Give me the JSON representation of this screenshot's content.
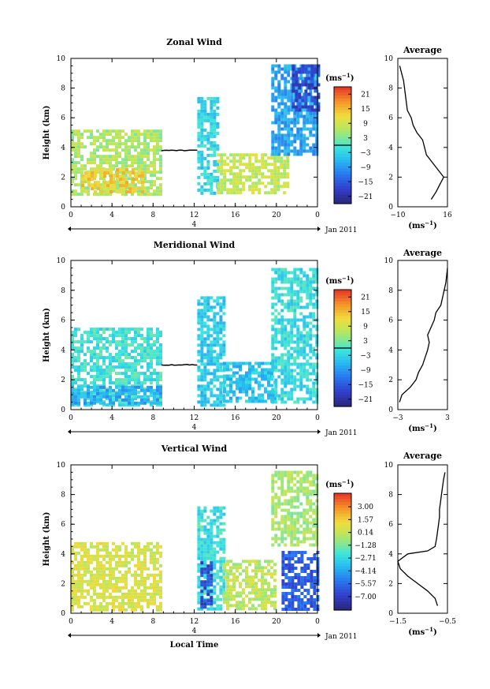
{
  "chart_data": [
    {
      "type": "heatmap",
      "title": "Zonal Wind",
      "ylabel": "Height (km)",
      "xlim": [
        0,
        24
      ],
      "ylim": [
        0,
        10
      ],
      "x_ticks": [
        "0",
        "4",
        "8",
        "12",
        "16",
        "20",
        "0"
      ],
      "y_ticks": [
        "0",
        "2",
        "4",
        "6",
        "8",
        "10"
      ],
      "date_tick": "4",
      "date_label": "Jan 2011",
      "colorbar": {
        "unit_prefix": "(ms",
        "unit_exp": "−1",
        "unit_suffix": ")",
        "min": -24,
        "max": 24,
        "tick_values": [
          21,
          15,
          9,
          3,
          -3,
          -9,
          -15,
          -21
        ],
        "tick_labels": [
          "21",
          "15",
          "9",
          "3",
          "−3",
          "−9",
          "−15",
          "−21"
        ],
        "zero_line": 0
      },
      "coverage": [
        {
          "x0": 0,
          "x1": 8.8,
          "y0": 0.8,
          "y1": 5.2,
          "value": 6
        },
        {
          "x0": 1,
          "x1": 7,
          "y0": 1.0,
          "y1": 2.6,
          "value": 13
        },
        {
          "x0": 12.3,
          "x1": 14.2,
          "y0": 0.9,
          "y1": 7.4,
          "value": -3
        },
        {
          "x0": 14.2,
          "x1": 21,
          "y0": 0.9,
          "y1": 3.6,
          "value": 8
        },
        {
          "x0": 19.5,
          "x1": 24,
          "y0": 3.5,
          "y1": 9.6,
          "value": -8
        },
        {
          "x0": 21.5,
          "x1": 24,
          "y0": 6.5,
          "y1": 9.6,
          "value": -17
        }
      ],
      "average_profile": {
        "title": "Average",
        "xlabel_prefix": "(ms",
        "xlabel_exp": "−1",
        "xlabel_suffix": ")",
        "xlim": [
          -10,
          16
        ],
        "x_ticks": [
          "−10",
          "16"
        ],
        "y_ticks": [
          "0",
          "2",
          "4",
          "6",
          "8",
          "10"
        ],
        "heights": [
          0.5,
          1,
          1.5,
          2,
          2.5,
          3,
          3.5,
          4,
          4.5,
          5,
          5.5,
          6,
          6.5,
          7,
          7.5,
          8,
          8.5,
          9,
          9.5
        ],
        "values": [
          7.5,
          10,
          12,
          14,
          11,
          8,
          5,
          4,
          3,
          0,
          -2,
          -3,
          -5,
          -5.5,
          -6,
          -6.5,
          -7,
          -8,
          -9
        ]
      }
    },
    {
      "type": "heatmap",
      "title": "Meridional Wind",
      "ylabel": "Height (km)",
      "xlim": [
        0,
        24
      ],
      "ylim": [
        0,
        10
      ],
      "x_ticks": [
        "0",
        "4",
        "8",
        "12",
        "16",
        "20",
        "0"
      ],
      "y_ticks": [
        "0",
        "2",
        "4",
        "6",
        "8",
        "10"
      ],
      "date_tick": "4",
      "date_label": "Jan 2011",
      "colorbar": {
        "unit_prefix": "(ms",
        "unit_exp": "−1",
        "unit_suffix": ")",
        "min": -24,
        "max": 24,
        "tick_values": [
          21,
          15,
          9,
          3,
          -3,
          -9,
          -15,
          -21
        ],
        "tick_labels": [
          "21",
          "15",
          "9",
          "3",
          "−3",
          "−9",
          "−15",
          "−21"
        ],
        "zero_line": 0
      },
      "coverage": [
        {
          "x0": 0,
          "x1": 8.8,
          "y0": 0.4,
          "y1": 5.5,
          "value": -1
        },
        {
          "x0": 0,
          "x1": 8.8,
          "y0": 0.4,
          "y1": 1.6,
          "value": -7
        },
        {
          "x0": 12.3,
          "x1": 14.8,
          "y0": 0.3,
          "y1": 7.6,
          "value": -4
        },
        {
          "x0": 14.8,
          "x1": 20,
          "y0": 0.5,
          "y1": 3.2,
          "value": -5
        },
        {
          "x0": 19.5,
          "x1": 24,
          "y0": 0.4,
          "y1": 9.5,
          "value": -2
        }
      ],
      "average_profile": {
        "title": "Average",
        "xlabel_prefix": "(ms",
        "xlabel_exp": "−1",
        "xlabel_suffix": ")",
        "xlim": [
          -3,
          3
        ],
        "x_ticks": [
          "−3",
          "3"
        ],
        "y_ticks": [
          "0",
          "2",
          "4",
          "6",
          "8",
          "10"
        ],
        "heights": [
          0.5,
          1,
          1.5,
          2,
          2.5,
          3,
          3.5,
          4,
          4.5,
          5,
          5.5,
          6,
          6.5,
          7,
          7.5,
          8,
          8.5,
          9,
          9.5
        ],
        "values": [
          -2.8,
          -2.5,
          -1.5,
          -0.8,
          -0.5,
          0,
          0.3,
          0.6,
          0.8,
          0.6,
          1.0,
          1.4,
          1.6,
          2.2,
          2.4,
          2.6,
          2.8,
          2.9,
          3.0
        ]
      }
    },
    {
      "type": "heatmap",
      "title": "Vertical Wind",
      "ylabel": "Height (km)",
      "xlabel": "Local Time",
      "xlim": [
        0,
        24
      ],
      "ylim": [
        0,
        10
      ],
      "x_ticks": [
        "0",
        "4",
        "8",
        "12",
        "16",
        "20",
        "0"
      ],
      "y_ticks": [
        "0",
        "2",
        "4",
        "6",
        "8",
        "10"
      ],
      "date_tick": "4",
      "date_label": "Jan 2011",
      "colorbar": {
        "unit_prefix": "(ms",
        "unit_exp": "−1",
        "unit_suffix": ")",
        "min": -8.5,
        "max": 4.5,
        "tick_values": [
          3.0,
          1.57,
          0.14,
          -1.28,
          -2.71,
          -4.14,
          -5.57,
          -7.0
        ],
        "tick_labels": [
          "3.00",
          "1.57",
          "0.14",
          "−1.28",
          "−2.71",
          "−4.14",
          "−5.57",
          "−7.00"
        ]
      },
      "coverage": [
        {
          "x0": 0,
          "x1": 8.8,
          "y0": 0.2,
          "y1": 4.8,
          "value": 0.6
        },
        {
          "x0": 12.3,
          "x1": 14.8,
          "y0": 0.3,
          "y1": 7.2,
          "value": -2.5
        },
        {
          "x0": 12.6,
          "x1": 13.6,
          "y0": 0.5,
          "y1": 3.5,
          "value": -6.5
        },
        {
          "x0": 14.8,
          "x1": 20,
          "y0": 0.2,
          "y1": 3.6,
          "value": 0.0
        },
        {
          "x0": 19.5,
          "x1": 24,
          "y0": 4.5,
          "y1": 9.6,
          "value": -0.5
        },
        {
          "x0": 20.5,
          "x1": 24,
          "y0": 0.2,
          "y1": 4.2,
          "value": -6.0
        }
      ],
      "average_profile": {
        "title": "Average",
        "xlabel_prefix": "(ms",
        "xlabel_exp": "−1",
        "xlabel_suffix": ")",
        "xlim": [
          -1.5,
          -0.5
        ],
        "x_ticks": [
          "−1.5",
          "−0.5"
        ],
        "y_ticks": [
          "0",
          "2",
          "4",
          "6",
          "8",
          "10"
        ],
        "heights": [
          0.5,
          1,
          1.5,
          2,
          2.5,
          3,
          3.5,
          4,
          4.2,
          4.5,
          5,
          5.5,
          6,
          6.5,
          7,
          7.5,
          8,
          8.5,
          9,
          9.5
        ],
        "values": [
          -0.7,
          -0.75,
          -0.9,
          -1.1,
          -1.3,
          -1.45,
          -1.5,
          -1.3,
          -0.9,
          -0.75,
          -0.72,
          -0.7,
          -0.68,
          -0.66,
          -0.66,
          -0.64,
          -0.62,
          -0.6,
          -0.58,
          -0.55
        ]
      }
    }
  ]
}
